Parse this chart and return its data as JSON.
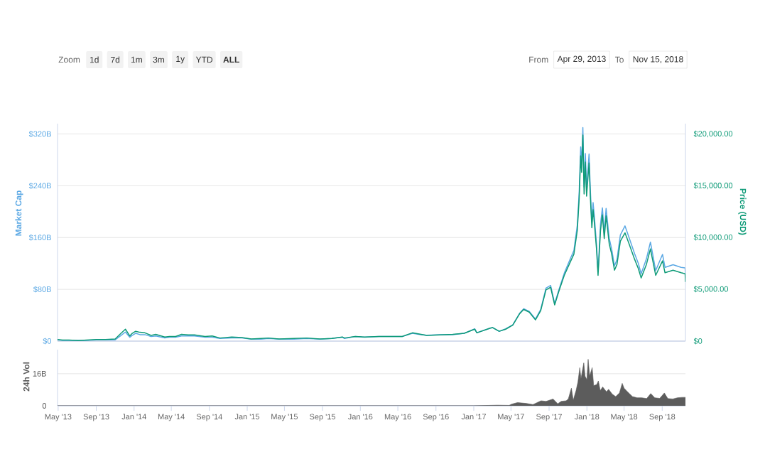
{
  "chart_data": [
    {
      "type": "line",
      "annotations": [
        "Zoom",
        "1d",
        "7d",
        "1m",
        "3m",
        "1y",
        "YTD",
        "**ALL**",
        "From",
        "Apr 29, 2013",
        "To",
        "Nov 15, 2018"
      ],
      "ylabel": "Market Cap",
      "y2label": "Price (USD)",
      "x": [
        "2013-04-29",
        "2013-05-15",
        "2013-06-05",
        "2013-07-05",
        "2013-08-01",
        "2013-09-01",
        "2013-10-01",
        "2013-11-01",
        "2013-11-18",
        "2013-12-04",
        "2013-12-18",
        "2013-12-26",
        "2014-01-06",
        "2014-01-20",
        "2014-02-05",
        "2014-02-25",
        "2014-03-12",
        "2014-04-10",
        "2014-04-25",
        "2014-05-15",
        "2014-06-03",
        "2014-06-25",
        "2014-07-15",
        "2014-08-18",
        "2014-09-10",
        "2014-10-05",
        "2014-11-12",
        "2014-12-15",
        "2015-01-14",
        "2015-02-15",
        "2015-03-10",
        "2015-04-14",
        "2015-06-01",
        "2015-07-12",
        "2015-08-24",
        "2015-10-01",
        "2015-11-04",
        "2015-11-11",
        "2015-12-15",
        "2016-01-15",
        "2016-03-01",
        "2016-05-15",
        "2016-06-17",
        "2016-07-15",
        "2016-08-02",
        "2016-09-15",
        "2016-10-25",
        "2016-12-01",
        "2017-01-04",
        "2017-01-11",
        "2017-02-23",
        "2017-03-03",
        "2017-03-24",
        "2017-04-14",
        "2017-05-07",
        "2017-05-29",
        "2017-06-11",
        "2017-06-29",
        "2017-07-19",
        "2017-08-05",
        "2017-08-22",
        "2017-09-06",
        "2017-09-19",
        "2017-10-03",
        "2017-10-20",
        "2017-11-10",
        "2017-11-20",
        "2017-12-01",
        "2017-12-07",
        "2017-12-12",
        "2017-12-15",
        "2017-12-19",
        "2017-12-23",
        "2017-12-27",
        "2017-12-31",
        "2018-01-08",
        "2018-01-12",
        "2018-01-17",
        "2018-01-21",
        "2018-01-25",
        "2018-02-01",
        "2018-02-06",
        "2018-02-14",
        "2018-02-20",
        "2018-02-26",
        "2018-03-04",
        "2018-03-14",
        "2018-03-22",
        "2018-03-31",
        "2018-04-08",
        "2018-04-19",
        "2018-05-04",
        "2018-05-17",
        "2018-06-04",
        "2018-06-16",
        "2018-06-25",
        "2018-07-12",
        "2018-07-25",
        "2018-08-11",
        "2018-09-02",
        "2018-09-10",
        "2018-10-06",
        "2018-11-01",
        "2018-11-14",
        "2018-11-15"
      ],
      "series": [
        {
          "color": "#5ba8e4",
          "values": [
            2,
            1,
            1,
            1,
            1,
            2,
            2,
            2,
            8,
            14,
            6,
            9,
            12,
            10,
            10,
            7,
            8,
            5,
            6,
            6,
            8,
            8,
            8,
            6,
            6,
            4,
            5,
            5,
            3,
            3,
            4,
            3,
            3,
            4,
            3,
            4,
            6,
            4,
            7,
            6,
            7,
            7,
            12,
            10,
            9,
            10,
            10,
            12,
            19,
            13,
            20,
            21,
            15,
            19,
            25,
            43,
            50,
            46,
            34,
            49,
            82,
            86,
            58,
            80,
            105,
            129,
            140,
            179,
            229,
            300,
            273,
            330,
            238,
            290,
            235,
            289,
            235,
            184,
            214,
            193,
            150,
            107,
            181,
            206,
            167,
            205,
            159,
            142,
            116,
            126,
            164,
            178,
            160,
            135,
            120,
            104,
            127,
            153,
            109,
            134,
            114,
            118,
            114,
            113,
            100
          ]
        },
        {
          "color": "#0f9b78",
          "axis": "y2",
          "values": [
            150,
            100,
            100,
            50,
            100,
            150,
            150,
            200,
            700,
            1150,
            500,
            750,
            950,
            850,
            800,
            550,
            650,
            400,
            450,
            450,
            650,
            600,
            600,
            450,
            500,
            300,
            400,
            350,
            200,
            250,
            300,
            200,
            250,
            300,
            200,
            250,
            400,
            300,
            450,
            400,
            450,
            450,
            800,
            650,
            550,
            600,
            650,
            750,
            1150,
            800,
            1250,
            1300,
            950,
            1150,
            1550,
            2650,
            3050,
            2800,
            2050,
            2950,
            4950,
            5200,
            3500,
            4850,
            6350,
            7750,
            8400,
            10700,
            13700,
            17900,
            16300,
            19900,
            14200,
            17300,
            14000,
            17200,
            14000,
            10950,
            12700,
            11450,
            8900,
            6350,
            10700,
            12200,
            9900,
            12100,
            9400,
            8400,
            6850,
            7400,
            9650,
            10450,
            9400,
            7900,
            7000,
            6100,
            7400,
            8900,
            6350,
            7750,
            6600,
            6850,
            6600,
            6500,
            5750
          ]
        }
      ],
      "xlim": [
        "2013-04-29",
        "2018-11-15"
      ],
      "ylim": [
        0,
        336
      ],
      "yticks": [
        {
          "value": 0,
          "label": "$0"
        },
        {
          "value": 80,
          "label": "$80B"
        },
        {
          "value": 160,
          "label": "$160B"
        },
        {
          "value": 240,
          "label": "$240B"
        },
        {
          "value": 320,
          "label": "$320B"
        }
      ],
      "y2lim": [
        0,
        21000
      ],
      "y2ticks": [
        {
          "value": 0,
          "label": "$0"
        },
        {
          "value": 5000,
          "label": "$5,000.00"
        },
        {
          "value": 10000,
          "label": "$10,000.00"
        },
        {
          "value": 15000,
          "label": "$15,000.00"
        },
        {
          "value": 20000,
          "label": "$20,000.00"
        }
      ],
      "grid": "y",
      "tick_labels": "y"
    },
    {
      "type": "area",
      "ylabel": "24h Vol",
      "color": "#5c5c5c",
      "x": [
        "2013-04-29",
        "2016-12-31",
        "2017-03-18",
        "2017-04-25",
        "2017-05-03",
        "2017-05-22",
        "2017-06-18",
        "2017-07-11",
        "2017-08-06",
        "2017-08-22",
        "2017-09-14",
        "2017-09-29",
        "2017-10-10",
        "2017-10-26",
        "2017-11-02",
        "2017-11-12",
        "2017-11-18",
        "2017-11-27",
        "2017-12-03",
        "2017-12-09",
        "2017-12-13",
        "2017-12-22",
        "2017-12-26",
        "2018-01-01",
        "2018-01-05",
        "2018-01-10",
        "2018-01-18",
        "2018-01-23",
        "2018-02-02",
        "2018-02-07",
        "2018-02-13",
        "2018-02-21",
        "2018-03-05",
        "2018-03-12",
        "2018-03-24",
        "2018-04-04",
        "2018-04-16",
        "2018-04-25",
        "2018-05-01",
        "2018-05-12",
        "2018-05-28",
        "2018-06-12",
        "2018-06-27",
        "2018-07-13",
        "2018-07-26",
        "2018-08-08",
        "2018-08-24",
        "2018-09-08",
        "2018-09-19",
        "2018-10-05",
        "2018-10-20",
        "2018-11-04",
        "2018-11-15"
      ],
      "values": [
        0,
        0,
        0.3,
        0.2,
        0.8,
        1.6,
        1.2,
        0.6,
        2.5,
        2.2,
        3.4,
        1.0,
        2.2,
        2.5,
        3.4,
        8.8,
        2.8,
        7.6,
        11.8,
        19.0,
        13.6,
        21.4,
        14.8,
        13.0,
        23.2,
        14.8,
        19.0,
        10.0,
        10.6,
        12.4,
        7.6,
        9.4,
        7.0,
        8.2,
        5.8,
        4.6,
        6.4,
        11.2,
        8.8,
        7.0,
        4.6,
        4.0,
        4.0,
        3.6,
        6.1,
        4.0,
        3.7,
        6.4,
        3.6,
        3.4,
        4.0,
        4.2,
        4.2
      ],
      "xlim": [
        "2013-04-29",
        "2018-11-15"
      ],
      "xticks": [
        {
          "value": "2013-05-01",
          "label": "May '13"
        },
        {
          "value": "2013-09-01",
          "label": "Sep '13"
        },
        {
          "value": "2014-01-01",
          "label": "Jan '14"
        },
        {
          "value": "2014-05-01",
          "label": "May '14"
        },
        {
          "value": "2014-09-01",
          "label": "Sep '14"
        },
        {
          "value": "2015-01-01",
          "label": "Jan '15"
        },
        {
          "value": "2015-05-01",
          "label": "May '15"
        },
        {
          "value": "2015-09-01",
          "label": "Sep '15"
        },
        {
          "value": "2016-01-01",
          "label": "Jan '16"
        },
        {
          "value": "2016-05-01",
          "label": "May '16"
        },
        {
          "value": "2016-09-01",
          "label": "Sep '16"
        },
        {
          "value": "2017-01-01",
          "label": "Jan '17"
        },
        {
          "value": "2017-05-01",
          "label": "May '17"
        },
        {
          "value": "2017-09-01",
          "label": "Sep '17"
        },
        {
          "value": "2018-01-01",
          "label": "Jan '18"
        },
        {
          "value": "2018-05-01",
          "label": "May '18"
        },
        {
          "value": "2018-09-01",
          "label": "Sep '18"
        }
      ],
      "ylim": [
        0,
        28
      ],
      "yticks": [
        0,
        {
          "value": 16,
          "label": "16B"
        }
      ],
      "grid": "y"
    }
  ]
}
